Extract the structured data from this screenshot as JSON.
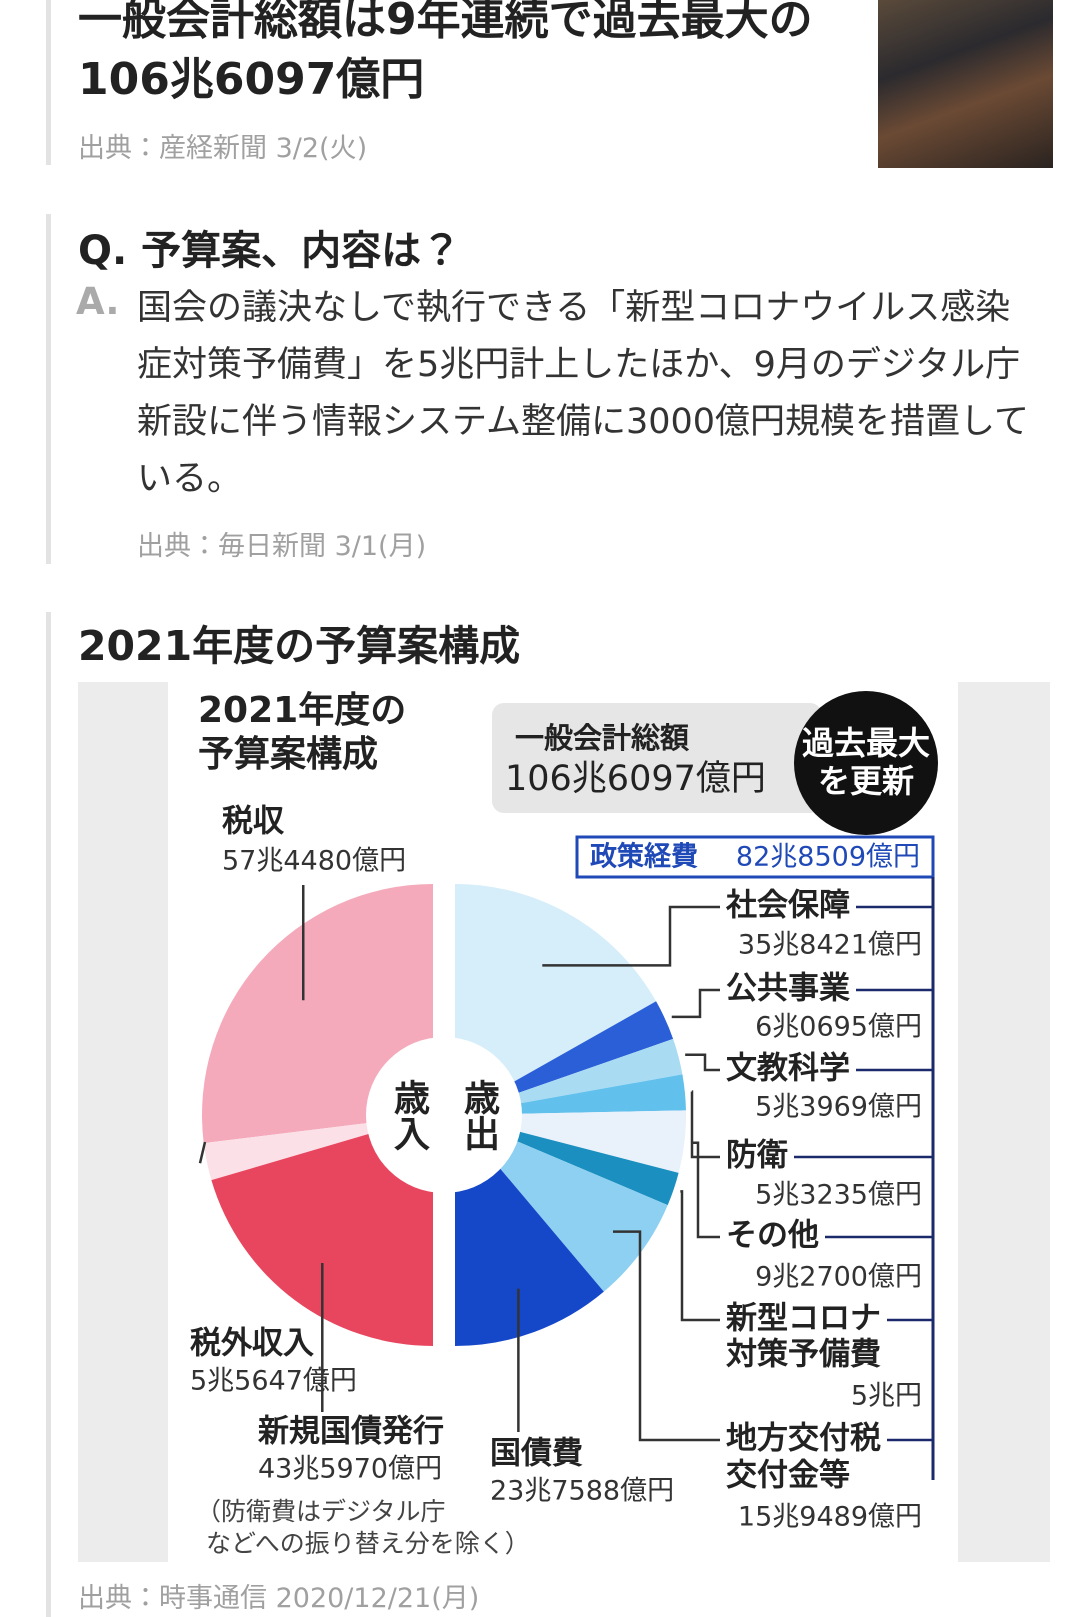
{
  "articles": [
    {
      "title": "一般会計総額は9年連続で過去最大の106兆6097億円",
      "source": "出典：産経新聞 3/2(火)"
    }
  ],
  "qa": {
    "question_marker": "Q.",
    "question": "予算案、内容は？",
    "answer_marker": "A.",
    "answer": "国会の議決なしで執行できる「新型コロナウイルス感染症対策予備費」を5兆円計上したほか、9月のデジタル庁新設に伴う情報システム整備に3000億円規模を措置している。",
    "source": "出典：毎日新聞 3/1(月)"
  },
  "section": {
    "title": "2021年度の予算案構成",
    "source": "出典：時事通信 2020/12/21(月)"
  },
  "infographic": {
    "type": "split-pie",
    "title_lines": [
      "2021年度の",
      "予算案構成"
    ],
    "total_label": "一般会計総額",
    "total_value": 1066097,
    "total_value_label": "106兆6097億円",
    "badge_lines": [
      "過去最大",
      "を更新"
    ],
    "policy": {
      "label": "政策経費",
      "value": 828509,
      "value_label": "82兆8509億円"
    },
    "center": {
      "revenue": "歳入",
      "expenditure": "歳出"
    },
    "revenue": [
      {
        "name_lines": [
          "税収"
        ],
        "value": 574480,
        "value_label": "57兆4480億円",
        "color": "#f5aabb"
      },
      {
        "name_lines": [
          "税外収入"
        ],
        "value": 55647,
        "value_label": "5兆5647億円",
        "color": "#fbe1e7"
      },
      {
        "name_lines": [
          "新規国債発行"
        ],
        "value": 435970,
        "value_label": "43兆5970億円",
        "color": "#e8465e"
      }
    ],
    "expenditure": [
      {
        "name_lines": [
          "社会保障"
        ],
        "value": 358421,
        "value_label": "35兆8421億円",
        "color": "#d5eefa"
      },
      {
        "name_lines": [
          "公共事業"
        ],
        "value": 60695,
        "value_label": "6兆0695億円",
        "color": "#2b5fd8"
      },
      {
        "name_lines": [
          "文教科学"
        ],
        "value": 53969,
        "value_label": "5兆3969億円",
        "color": "#a9dcf3"
      },
      {
        "name_lines": [
          "防衛"
        ],
        "value": 53235,
        "value_label": "5兆3235億円",
        "color": "#62c0ec"
      },
      {
        "name_lines": [
          "その他"
        ],
        "value": 92700,
        "value_label": "9兆2700億円",
        "color": "#e9f1fb"
      },
      {
        "name_lines": [
          "新型コロナ",
          "対策予備費"
        ],
        "value": 50000,
        "value_label": "5兆円",
        "color": "#1b8fc0"
      },
      {
        "name_lines": [
          "地方交付税",
          "交付金等"
        ],
        "value": 159489,
        "value_label": "15兆9489億円",
        "color": "#8ed0f1"
      },
      {
        "name_lines": [
          "国債費"
        ],
        "value": 237588,
        "value_label": "23兆7588億円",
        "color": "#1547c9"
      }
    ],
    "note_lines": [
      "（防衛費はデジタル庁",
      "などへの振り替え分を除く）"
    ]
  }
}
